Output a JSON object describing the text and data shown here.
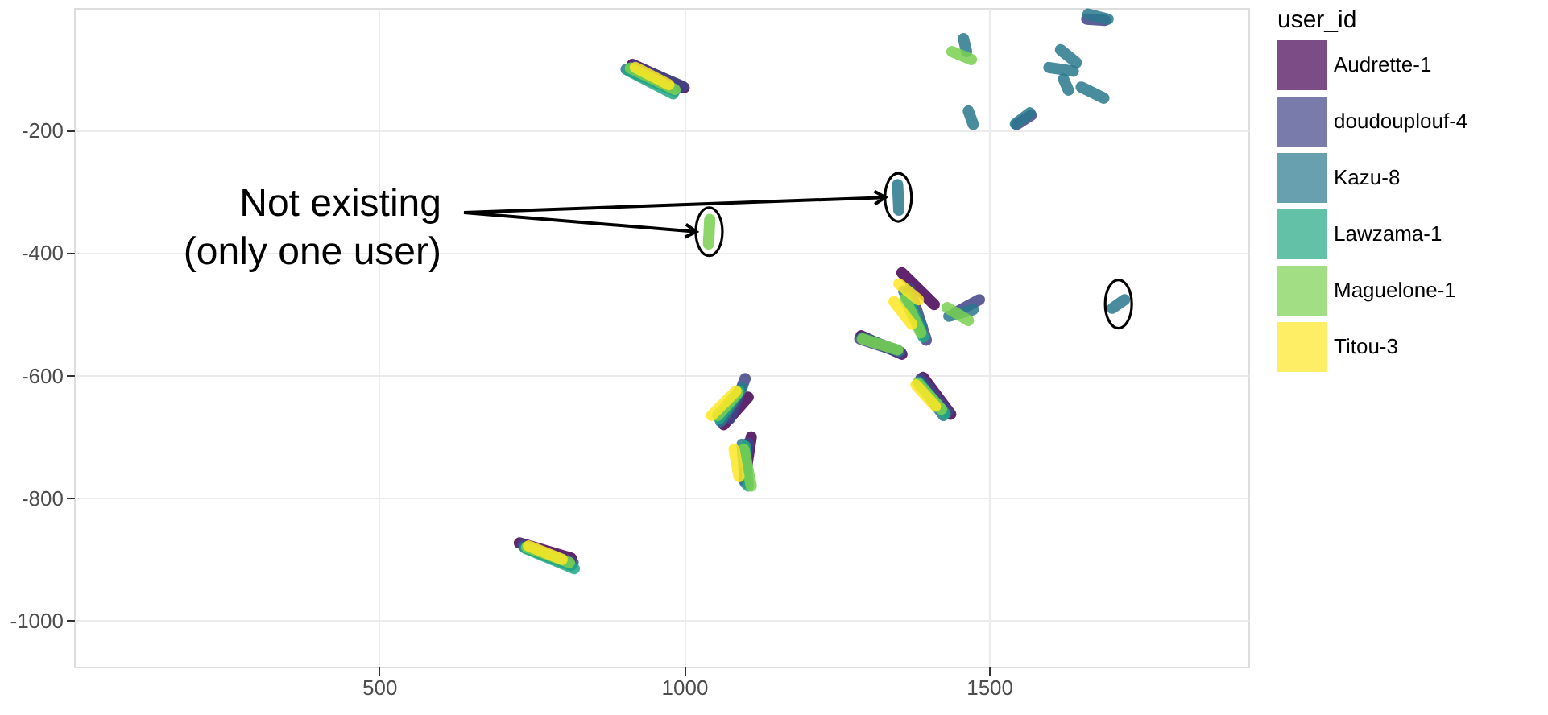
{
  "chart_data": {
    "type": "line",
    "legend_title": "user_id",
    "legend": "right",
    "grid": true,
    "marker": "none",
    "line_style": "solid",
    "xlim": [
      0,
      1925
    ],
    "ylim": [
      -1075,
      0
    ],
    "xticks": [
      500,
      1000,
      1500
    ],
    "yticks": [
      -1000,
      -800,
      -600,
      -400,
      -200
    ],
    "annotations": [
      "Not existing\n(only one user)"
    ],
    "series": [
      {
        "name": "Audrette-1",
        "color": "#440154",
        "x": [
          915,
          1000,
          null,
          730,
          815,
          null,
          1065,
          1105,
          null,
          1110,
          1100,
          null,
          1357,
          1410,
          null,
          1290,
          1357,
          null,
          1392,
          1437
        ],
        "values": [
          -92,
          -130,
          null,
          -873,
          -898,
          null,
          -680,
          -635,
          null,
          -700,
          -765,
          null,
          -432,
          -484,
          null,
          -535,
          -565,
          null,
          -603,
          -663
        ]
      },
      {
        "name": "doudouplouf-4",
        "color": "#414487",
        "x": [
          918,
          998,
          null,
          735,
          818,
          null,
          1075,
          1100,
          null,
          1105,
          1098,
          null,
          1370,
          1397,
          null,
          1288,
          1355,
          null,
          1445,
          1484,
          null,
          1388,
          1432,
          null,
          1660,
          1690,
          null,
          1545,
          1569
        ],
        "values": [
          -95,
          -128,
          null,
          -876,
          -905,
          null,
          -670,
          -605,
          null,
          -710,
          -770,
          null,
          -458,
          -542,
          null,
          -540,
          -562,
          null,
          -497,
          -476,
          null,
          -605,
          -660,
          null,
          -18,
          -20,
          null,
          -190,
          -175
        ]
      },
      {
        "name": "Kazu-8",
        "color": "#2a788e",
        "x": [
          905,
          985,
          null,
          738,
          815,
          null,
          1060,
          1095,
          null,
          1095,
          1100,
          null,
          1360,
          1390,
          null,
          1292,
          1352,
          null,
          1434,
          1474,
          null,
          1385,
          1425,
          null,
          1350,
          1352,
          null,
          1702,
          1722,
          null,
          1458,
          1463,
          null,
          1466,
          1474,
          null,
          1662,
          1695,
          null,
          1617,
          1643,
          null,
          1598,
          1638,
          null,
          1622,
          1630,
          null,
          1651,
          1688,
          null,
          1543,
          1567
        ],
        "values": [
          -100,
          -135,
          null,
          -880,
          -910,
          null,
          -675,
          -620,
          null,
          -712,
          -775,
          null,
          -462,
          -520,
          null,
          -538,
          -560,
          null,
          -503,
          -492,
          null,
          -610,
          -665,
          null,
          -288,
          -330,
          null,
          -490,
          -476,
          null,
          -50,
          -71,
          null,
          -168,
          -190,
          null,
          -10,
          -18,
          null,
          -68,
          -89,
          null,
          -97,
          -103,
          null,
          -116,
          -134,
          null,
          -129,
          -147,
          null,
          -189,
          -171
        ]
      },
      {
        "name": "Lawzama-1",
        "color": "#22a884",
        "x": [
          910,
          982,
          null,
          740,
          820,
          null,
          1058,
          1090,
          null,
          1100,
          1105,
          null,
          1365,
          1392,
          null,
          1385,
          1428
        ],
        "values": [
          -103,
          -140,
          null,
          -882,
          -915,
          null,
          -670,
          -625,
          null,
          -715,
          -780,
          null,
          -471,
          -537,
          null,
          -612,
          -662
        ]
      },
      {
        "name": "Maguelone-1",
        "color": "#7ad151",
        "x": [
          912,
          985,
          null,
          742,
          812,
          null,
          1055,
          1088,
          null,
          1098,
          1110,
          null,
          1362,
          1388,
          null,
          1292,
          1350,
          null,
          1431,
          1466,
          null,
          1383,
          1422,
          null,
          1042,
          1040,
          null,
          1439,
          1471
        ],
        "values": [
          -98,
          -133,
          null,
          -880,
          -905,
          null,
          -665,
          -628,
          null,
          -720,
          -780,
          null,
          -475,
          -530,
          null,
          -540,
          -558,
          null,
          -489,
          -510,
          null,
          -612,
          -655,
          null,
          -345,
          -385,
          null,
          -71,
          -84
        ]
      },
      {
        "name": "Titou-3",
        "color": "#fde725",
        "x": [
          920,
          975,
          null,
          745,
          800,
          null,
          1045,
          1085,
          null,
          1082,
          1090,
          null,
          1352,
          1384,
          null,
          1344,
          1373,
          null,
          1380,
          1412
        ],
        "values": [
          -97,
          -125,
          null,
          -878,
          -900,
          null,
          -665,
          -625,
          null,
          -720,
          -765,
          null,
          -450,
          -476,
          null,
          -479,
          -516,
          null,
          -615,
          -650
        ]
      }
    ]
  }
}
